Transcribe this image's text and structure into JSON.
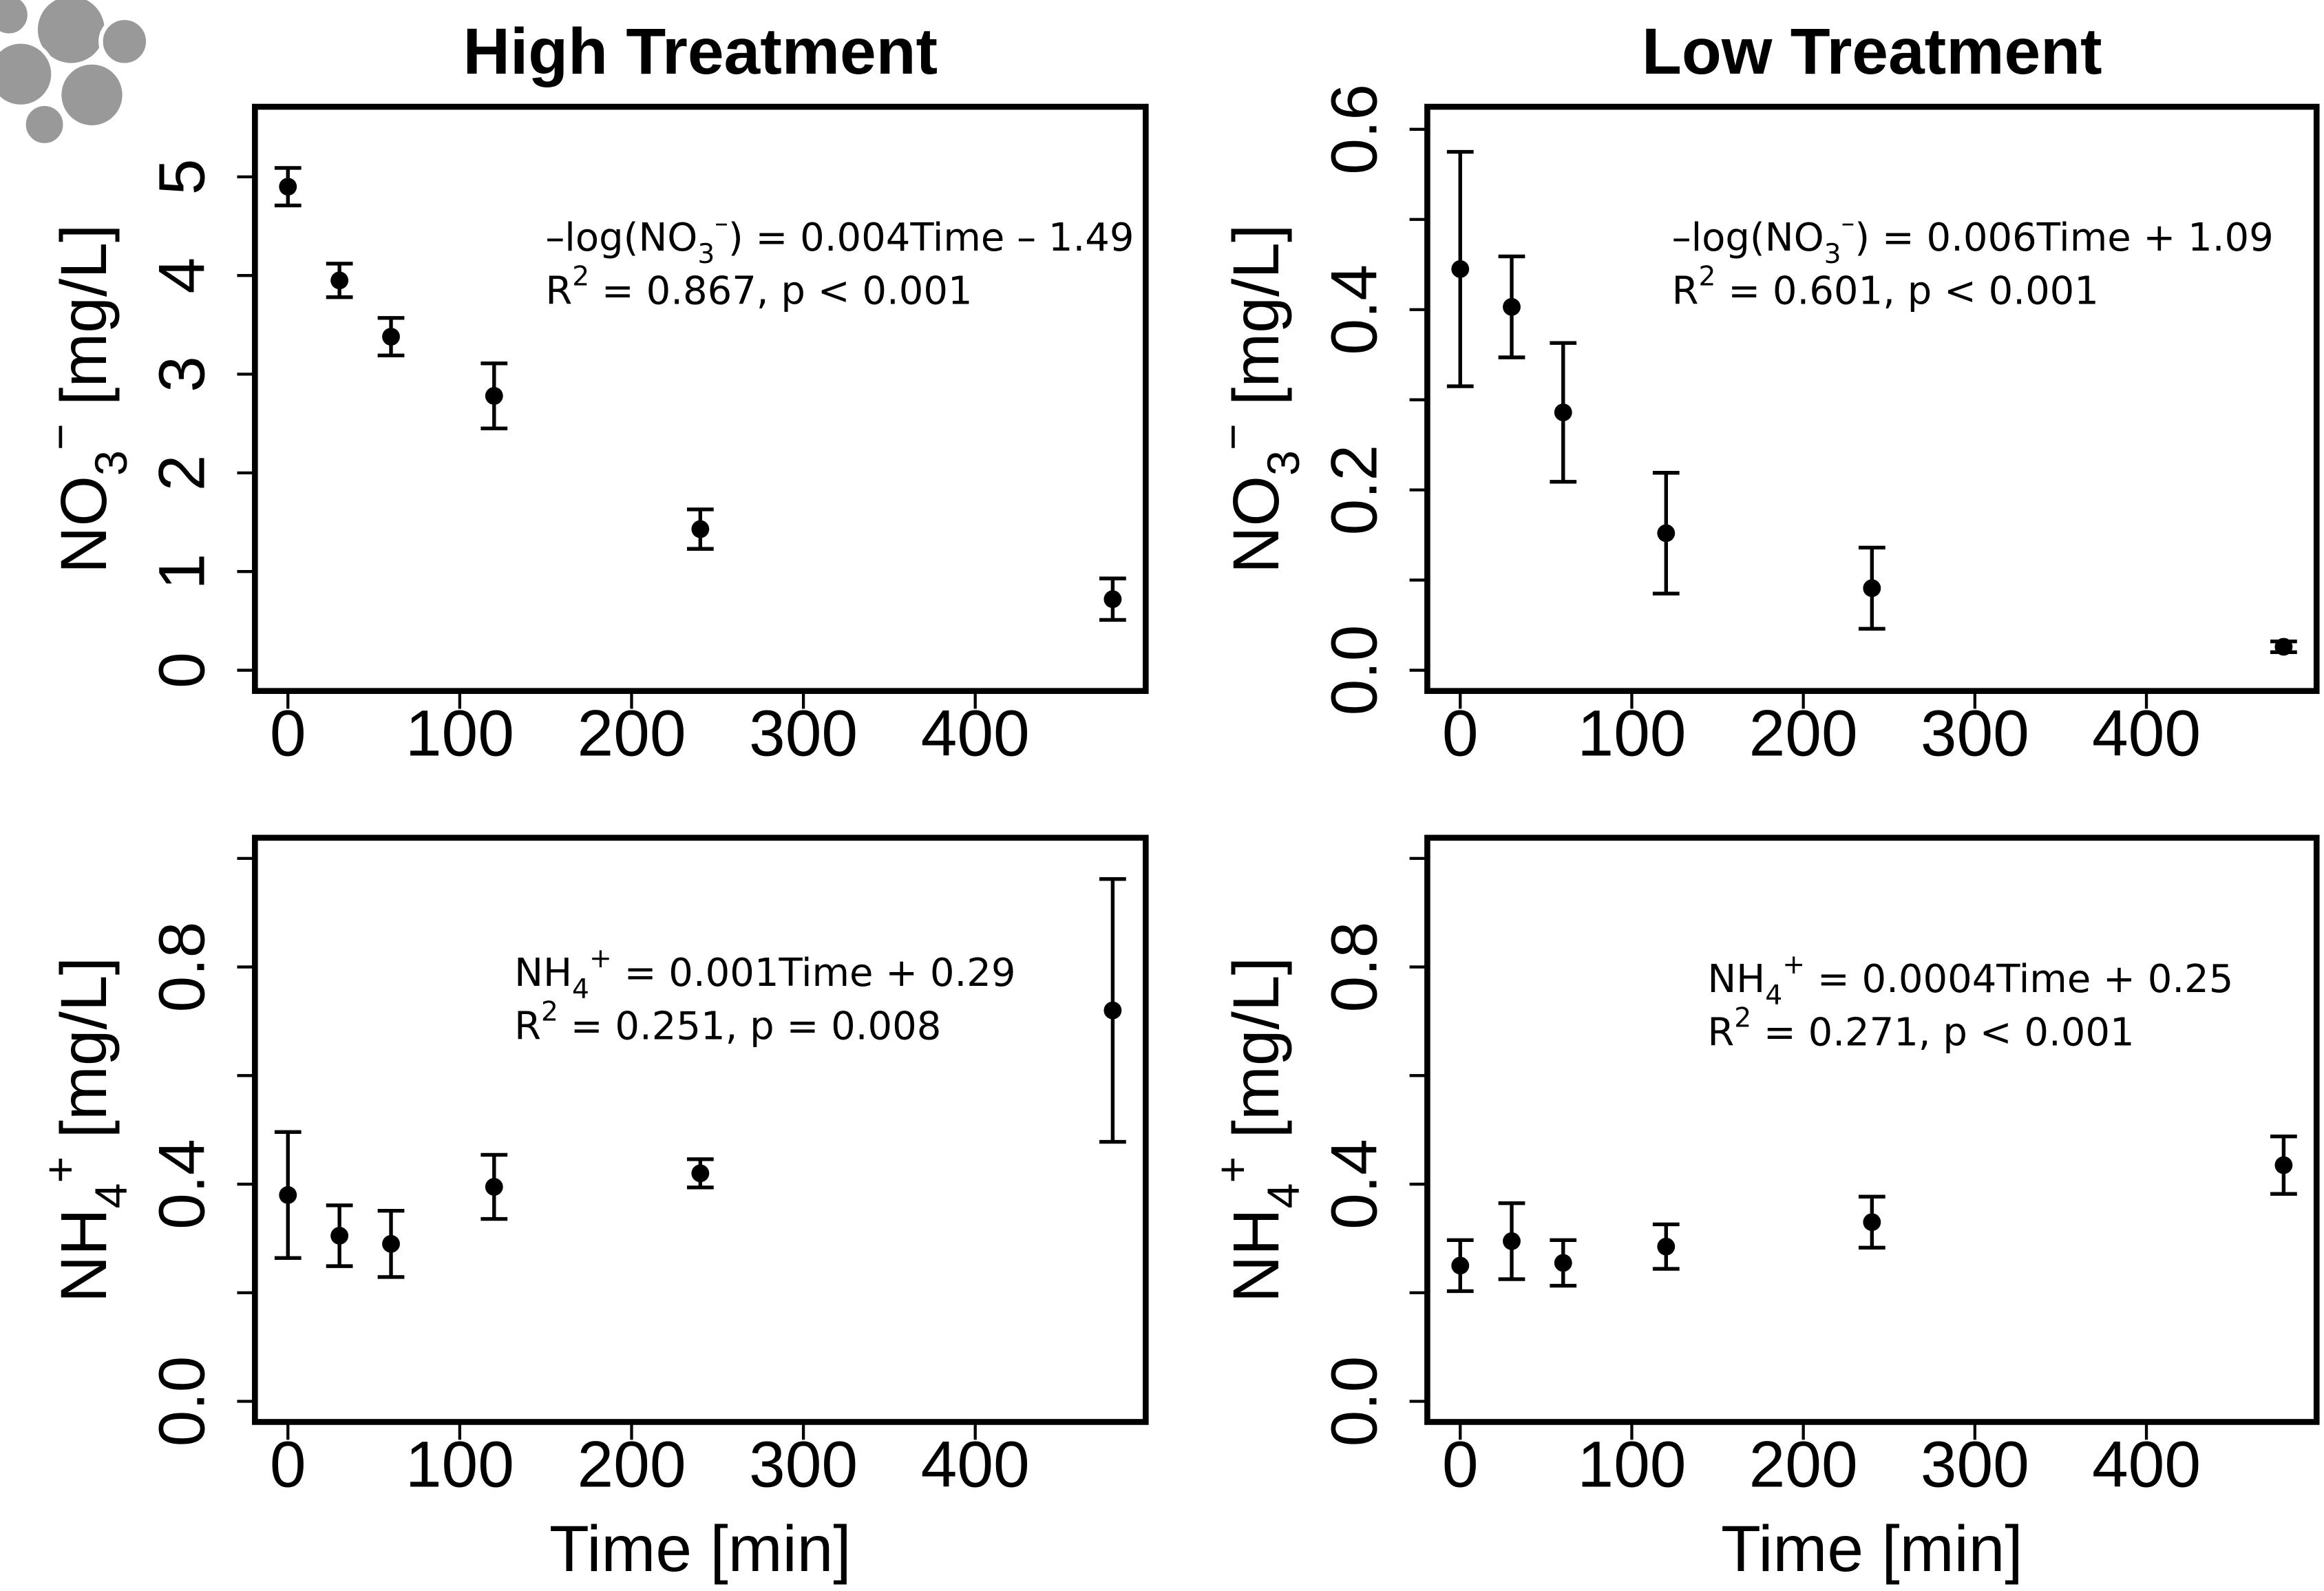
{
  "chart_data": [
    {
      "type": "scatter",
      "title": "High Treatment",
      "ylabel": [
        {
          "text": "NO"
        },
        {
          "sub": "3"
        },
        {
          "sup": "−"
        },
        {
          "text": " [mg/L]"
        }
      ],
      "x": [
        0,
        30,
        60,
        120,
        240,
        480
      ],
      "values": [
        4.9,
        3.95,
        3.38,
        2.78,
        1.43,
        0.72
      ],
      "errors": [
        0.19,
        0.17,
        0.19,
        0.33,
        0.2,
        0.21
      ],
      "color": "#000000",
      "xlim": [
        -19.2,
        499.2
      ],
      "xticks": [
        0,
        100,
        200,
        300,
        400
      ],
      "ylim": [
        -0.21,
        5.71
      ],
      "yticks": [
        0,
        1,
        2,
        3,
        4,
        5
      ],
      "annotations": [
        [
          {
            "text": "–log(NO"
          },
          {
            "sub": "3"
          },
          {
            "sup": "–"
          },
          {
            "text": ") = 0.004Time – 1.49"
          }
        ],
        [
          {
            "text": "R"
          },
          {
            "sup": "2"
          },
          {
            "text": " = 0.867, p < 0.001"
          }
        ]
      ]
    },
    {
      "type": "scatter",
      "title": "Low Treatment",
      "ylabel": [
        {
          "text": "NO"
        },
        {
          "sub": "3"
        },
        {
          "sup": "−"
        },
        {
          "text": " [mg/L]"
        }
      ],
      "x": [
        0,
        30,
        60,
        120,
        240,
        480
      ],
      "values": [
        0.445,
        0.403,
        0.286,
        0.152,
        0.091,
        0.026
      ],
      "errors": [
        0.13,
        0.056,
        0.077,
        0.067,
        0.045,
        0.006
      ],
      "color": "#000000",
      "xlim": [
        -19.2,
        499.2
      ],
      "xticks": [
        0,
        100,
        200,
        300,
        400
      ],
      "ylim": [
        -0.023,
        0.625
      ],
      "yticks": [
        {
          "value": 0,
          "label": "0.0"
        },
        {
          "value": 0.1,
          "label": null
        },
        {
          "value": 0.2,
          "label": "0.2"
        },
        {
          "value": 0.3,
          "label": null
        },
        {
          "value": 0.4,
          "label": "0.4"
        },
        {
          "value": 0.5,
          "label": null
        },
        {
          "value": 0.6,
          "label": "0.6"
        }
      ],
      "annotations": [
        [
          {
            "text": "–log(NO"
          },
          {
            "sub": "3"
          },
          {
            "sup": "–"
          },
          {
            "text": ") = 0.006Time + 1.09"
          }
        ],
        [
          {
            "text": "R"
          },
          {
            "sup": "2"
          },
          {
            "text": " = 0.601, p < 0.001"
          }
        ]
      ]
    },
    {
      "type": "scatter",
      "xlabel": "Time [min]",
      "ylabel": [
        {
          "text": "NH"
        },
        {
          "sub": "4"
        },
        {
          "sup": "+"
        },
        {
          "text": " [mg/L]"
        }
      ],
      "x": [
        0,
        30,
        60,
        120,
        240,
        480
      ],
      "values": [
        0.38,
        0.305,
        0.29,
        0.395,
        0.42,
        0.72
      ],
      "errors": [
        0.116,
        0.056,
        0.061,
        0.059,
        0.026,
        0.242
      ],
      "color": "#000000",
      "xlim": [
        -19.2,
        499.2
      ],
      "xticks": [
        0,
        100,
        200,
        300,
        400
      ],
      "ylim": [
        -0.038,
        1.038
      ],
      "yticks": [
        {
          "value": 0,
          "label": "0.0"
        },
        {
          "value": 0.2,
          "label": null
        },
        {
          "value": 0.4,
          "label": "0.4"
        },
        {
          "value": 0.6,
          "label": null
        },
        {
          "value": 0.8,
          "label": "0.8"
        },
        {
          "value": 1,
          "label": null
        }
      ],
      "annotations": [
        [
          {
            "text": "NH"
          },
          {
            "sub": "4"
          },
          {
            "sup": "+"
          },
          {
            "text": " = 0.001Time + 0.29"
          }
        ],
        [
          {
            "text": "R"
          },
          {
            "sup": "2"
          },
          {
            "text": " = 0.251, p = 0.008"
          }
        ]
      ]
    },
    {
      "type": "scatter",
      "xlabel": "Time [min]",
      "ylabel": [
        {
          "text": "NH"
        },
        {
          "sub": "4"
        },
        {
          "sup": "+"
        },
        {
          "text": " [mg/L]"
        }
      ],
      "x": [
        0,
        30,
        60,
        120,
        240,
        480
      ],
      "values": [
        0.25,
        0.295,
        0.255,
        0.285,
        0.33,
        0.435
      ],
      "errors": [
        0.047,
        0.07,
        0.042,
        0.041,
        0.047,
        0.053
      ],
      "color": "#000000",
      "xlim": [
        -19.2,
        499.2
      ],
      "xticks": [
        0,
        100,
        200,
        300,
        400
      ],
      "ylim": [
        -0.038,
        1.038
      ],
      "yticks": [
        {
          "value": 0,
          "label": "0.0"
        },
        {
          "value": 0.2,
          "label": null
        },
        {
          "value": 0.4,
          "label": "0.4"
        },
        {
          "value": 0.6,
          "label": null
        },
        {
          "value": 0.8,
          "label": "0.8"
        },
        {
          "value": 1,
          "label": null
        }
      ],
      "annotations": [
        [
          {
            "text": "NH"
          },
          {
            "sub": "4"
          },
          {
            "sup": "+"
          },
          {
            "text": " = 0.0004Time + 0.25"
          }
        ],
        [
          {
            "text": "R"
          },
          {
            "sup": "2"
          },
          {
            "text": " = 0.271, p < 0.001"
          }
        ]
      ]
    }
  ]
}
